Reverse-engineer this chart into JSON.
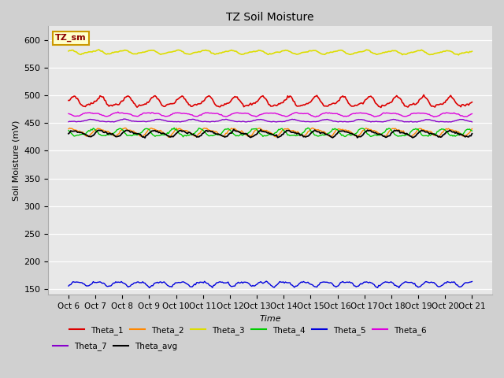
{
  "title": "TZ Soil Moisture",
  "xlabel": "Time",
  "ylabel": "Soil Moisture (mV)",
  "legend_label": "TZ_sm",
  "x_tick_labels": [
    "Oct 6",
    "Oct 7",
    "Oct 8",
    "Oct 9",
    "Oct 10",
    "Oct 11",
    "Oct 12",
    "Oct 13",
    "Oct 14",
    "Oct 15",
    "Oct 16",
    "Oct 17",
    "Oct 18",
    "Oct 19",
    "Oct 20",
    "Oct 21"
  ],
  "ylim": [
    140,
    625
  ],
  "yticks": [
    150,
    200,
    250,
    300,
    350,
    400,
    450,
    500,
    550,
    600
  ],
  "plot_bg_color": "#e8e8e8",
  "fig_bg_color": "#d0d0d0",
  "series": {
    "Theta_1": {
      "color": "#dd0000",
      "base": 488,
      "amplitude": 8,
      "trend": -0.6,
      "freq": 1.0,
      "noise": 1.0,
      "lw": 1.2
    },
    "Theta_2": {
      "color": "#ff8800",
      "base": 434,
      "amplitude": 6,
      "trend": -0.4,
      "freq": 1.0,
      "noise": 0.8,
      "lw": 1.0
    },
    "Theta_3": {
      "color": "#dddd00",
      "base": 578,
      "amplitude": 3,
      "trend": -0.87,
      "freq": 1.0,
      "noise": 0.5,
      "lw": 1.2
    },
    "Theta_4": {
      "color": "#00cc00",
      "base": 432,
      "amplitude": 6,
      "trend": -0.35,
      "freq": 1.0,
      "noise": 0.8,
      "lw": 1.0
    },
    "Theta_5": {
      "color": "#0000dd",
      "base": 160,
      "amplitude": 4,
      "trend": 0.0,
      "freq": 1.3,
      "noise": 0.8,
      "lw": 1.0
    },
    "Theta_6": {
      "color": "#dd00dd",
      "base": 466,
      "amplitude": 3,
      "trend": -0.53,
      "freq": 0.9,
      "noise": 0.4,
      "lw": 1.0
    },
    "Theta_7": {
      "color": "#8800cc",
      "base": 454,
      "amplitude": 2,
      "trend": -0.6,
      "freq": 0.8,
      "noise": 0.3,
      "lw": 1.0
    },
    "Theta_avg": {
      "color": "#000000",
      "base": 431,
      "amplitude": 5,
      "trend": -0.35,
      "freq": 1.0,
      "noise": 0.8,
      "lw": 1.3
    }
  },
  "plot_order": [
    "Theta_3",
    "Theta_6",
    "Theta_7",
    "Theta_1",
    "Theta_2",
    "Theta_4",
    "Theta_avg",
    "Theta_5"
  ],
  "legend_row1": [
    "Theta_1",
    "Theta_2",
    "Theta_3",
    "Theta_4",
    "Theta_5",
    "Theta_6"
  ],
  "legend_row2": [
    "Theta_7",
    "Theta_avg"
  ]
}
